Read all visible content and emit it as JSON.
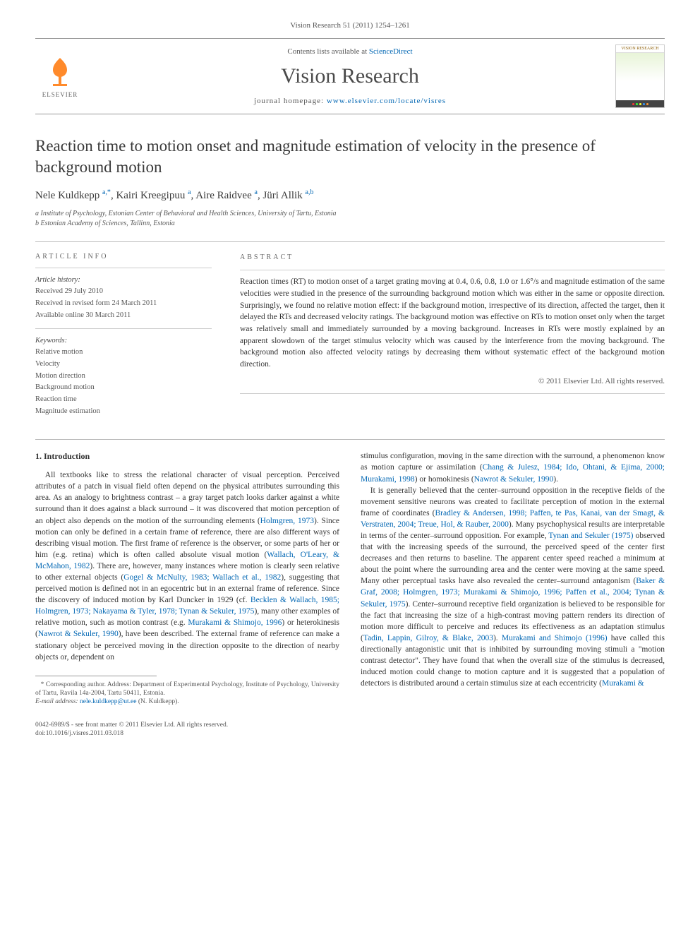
{
  "header": {
    "citation": "Vision Research 51 (2011) 1254–1261",
    "contents_prefix": "Contents lists available at ",
    "contents_link": "ScienceDirect",
    "journal_name": "Vision Research",
    "homepage_prefix": "journal homepage: ",
    "homepage_url": "www.elsevier.com/locate/visres",
    "publisher": "ELSEVIER",
    "cover_title": "VISION RESEARCH"
  },
  "article": {
    "title": "Reaction time to motion onset and magnitude estimation of velocity in the presence of background motion",
    "authors_html": "Nele Kuldkepp <sup>a,*</sup>, Kairi Kreegipuu <sup>a</sup>, Aire Raidvee <sup>a</sup>, Jüri Allik <sup>a,b</sup>",
    "affiliations": [
      "a Institute of Psychology, Estonian Center of Behavioral and Health Sciences, University of Tartu, Estonia",
      "b Estonian Academy of Sciences, Tallinn, Estonia"
    ]
  },
  "info": {
    "heading": "ARTICLE INFO",
    "history_label": "Article history:",
    "history": [
      "Received 29 July 2010",
      "Received in revised form 24 March 2011",
      "Available online 30 March 2011"
    ],
    "keywords_label": "Keywords:",
    "keywords": [
      "Relative motion",
      "Velocity",
      "Motion direction",
      "Background motion",
      "Reaction time",
      "Magnitude estimation"
    ]
  },
  "abstract": {
    "heading": "ABSTRACT",
    "text": "Reaction times (RT) to motion onset of a target grating moving at 0.4, 0.6, 0.8, 1.0 or 1.6°/s and magnitude estimation of the same velocities were studied in the presence of the surrounding background motion which was either in the same or opposite direction. Surprisingly, we found no relative motion effect: if the background motion, irrespective of its direction, affected the target, then it delayed the RTs and decreased velocity ratings. The background motion was effective on RTs to motion onset only when the target was relatively small and immediately surrounded by a moving background. Increases in RTs were mostly explained by an apparent slowdown of the target stimulus velocity which was caused by the interference from the moving background. The background motion also affected velocity ratings by decreasing them without systematic effect of the background motion direction.",
    "copyright": "© 2011 Elsevier Ltd. All rights reserved."
  },
  "body": {
    "section1_heading": "1. Introduction",
    "left_para1_a": "All textbooks like to stress the relational character of visual perception. Perceived attributes of a patch in visual field often depend on the physical attributes surrounding this area. As an analogy to brightness contrast – a gray target patch looks darker against a white surround than it does against a black surround – it was discovered that motion perception of an object also depends on the motion of the surrounding elements (",
    "ref_holmgren": "Holmgren, 1973",
    "left_para1_b": "). Since motion can only be defined in a certain frame of reference, there are also different ways of describing visual motion. The first frame of reference is the observer, or some parts of her or him (e.g. retina) which is often called absolute visual motion (",
    "ref_wallach": "Wallach, O'Leary, & McMahon, 1982",
    "left_para1_c": "). There are, however, many instances where motion is clearly seen relative to other external objects (",
    "ref_gogel": "Gogel & McNulty, 1983; Wallach et al., 1982",
    "left_para1_d": "), suggesting that perceived motion is defined not in an egocentric but in an external frame of reference. Since the discovery of induced motion by Karl Duncker in 1929 (cf. ",
    "ref_becklen": "Becklen & Wallach, 1985; Holmgren, 1973; Nakayama & Tyler, 1978; Tynan & Sekuler, 1975",
    "left_para1_e": "), many other examples of relative motion, such as motion contrast (e.g. ",
    "ref_murakami96": "Murakami & Shimojo, 1996",
    "left_para1_f": ") or heterokinesis (",
    "ref_nawrot": "Nawrot & Sekuler, 1990",
    "left_para1_g": "), have been described. The external frame of reference can make a stationary object be perceived moving in the direction opposite to the direction of nearby objects or, dependent on",
    "right_para1_a": "stimulus configuration, moving in the same direction with the surround, a phenomenon know as motion capture or assimilation (",
    "ref_chang": "Chang & Julesz, 1984; Ido, Ohtani, & Ejima, 2000; Murakami, 1998",
    "right_para1_b": ") or homokinesis (",
    "ref_nawrot2": "Nawrot & Sekuler, 1990",
    "right_para1_c": ").",
    "right_para2_a": "It is generally believed that the center–surround opposition in the receptive fields of the movement sensitive neurons was created to facilitate perception of motion in the external frame of coordinates (",
    "ref_bradley": "Bradley & Andersen, 1998; Paffen, te Pas, Kanai, van der Smagt, & Verstraten, 2004; Treue, Hol, & Rauber, 2000",
    "right_para2_b": "). Many psychophysical results are interpretable in terms of the center–surround opposition. For example, ",
    "ref_tynan": "Tynan and Sekuler (1975)",
    "right_para2_c": " observed that with the increasing speeds of the surround, the perceived speed of the center first decreases and then returns to baseline. The apparent center speed reached a minimum at about the point where the surrounding area and the center were moving at the same speed. Many other perceptual tasks have also revealed the center–surround antagonism (",
    "ref_baker": "Baker & Graf, 2008; Holmgren, 1973; Murakami & Shimojo, 1996; Paffen et al., 2004; Tynan & Sekuler, 1975",
    "right_para2_d": "). Center–surround receptive field organization is believed to be responsible for the fact that increasing the size of a high-contrast moving pattern renders its direction of motion more difficult to perceive and reduces its effectiveness as an adaptation stimulus (",
    "ref_tadin": "Tadin, Lappin, Gilroy, & Blake, 2003",
    "right_para2_e": "). ",
    "ref_murakami_shimojo": "Murakami and Shimojo (1996)",
    "right_para2_f": " have called this directionally antagonistic unit that is inhibited by surrounding moving stimuli a \"motion contrast detector\". They have found that when the overall size of the stimulus is decreased, induced motion could change to motion capture and it is suggested that a population of detectors is distributed around a certain stimulus size at each eccentricity (",
    "ref_murakami_end": "Murakami &"
  },
  "footnote": {
    "marker": "*",
    "text": "Corresponding author. Address: Department of Experimental Psychology, Institute of Psychology, University of Tartu, Ravila 14a-2004, Tartu 50411, Estonia.",
    "email_label": "E-mail address:",
    "email": "nele.kuldkepp@ut.ee",
    "email_suffix": "(N. Kuldkepp)."
  },
  "bottom": {
    "line1": "0042-6989/$ - see front matter © 2011 Elsevier Ltd. All rights reserved.",
    "line2": "doi:10.1016/j.visres.2011.03.018"
  },
  "colors": {
    "link": "#0066b3",
    "elsevier_orange": "#ff8a2b",
    "text": "#333333",
    "muted": "#555555"
  }
}
